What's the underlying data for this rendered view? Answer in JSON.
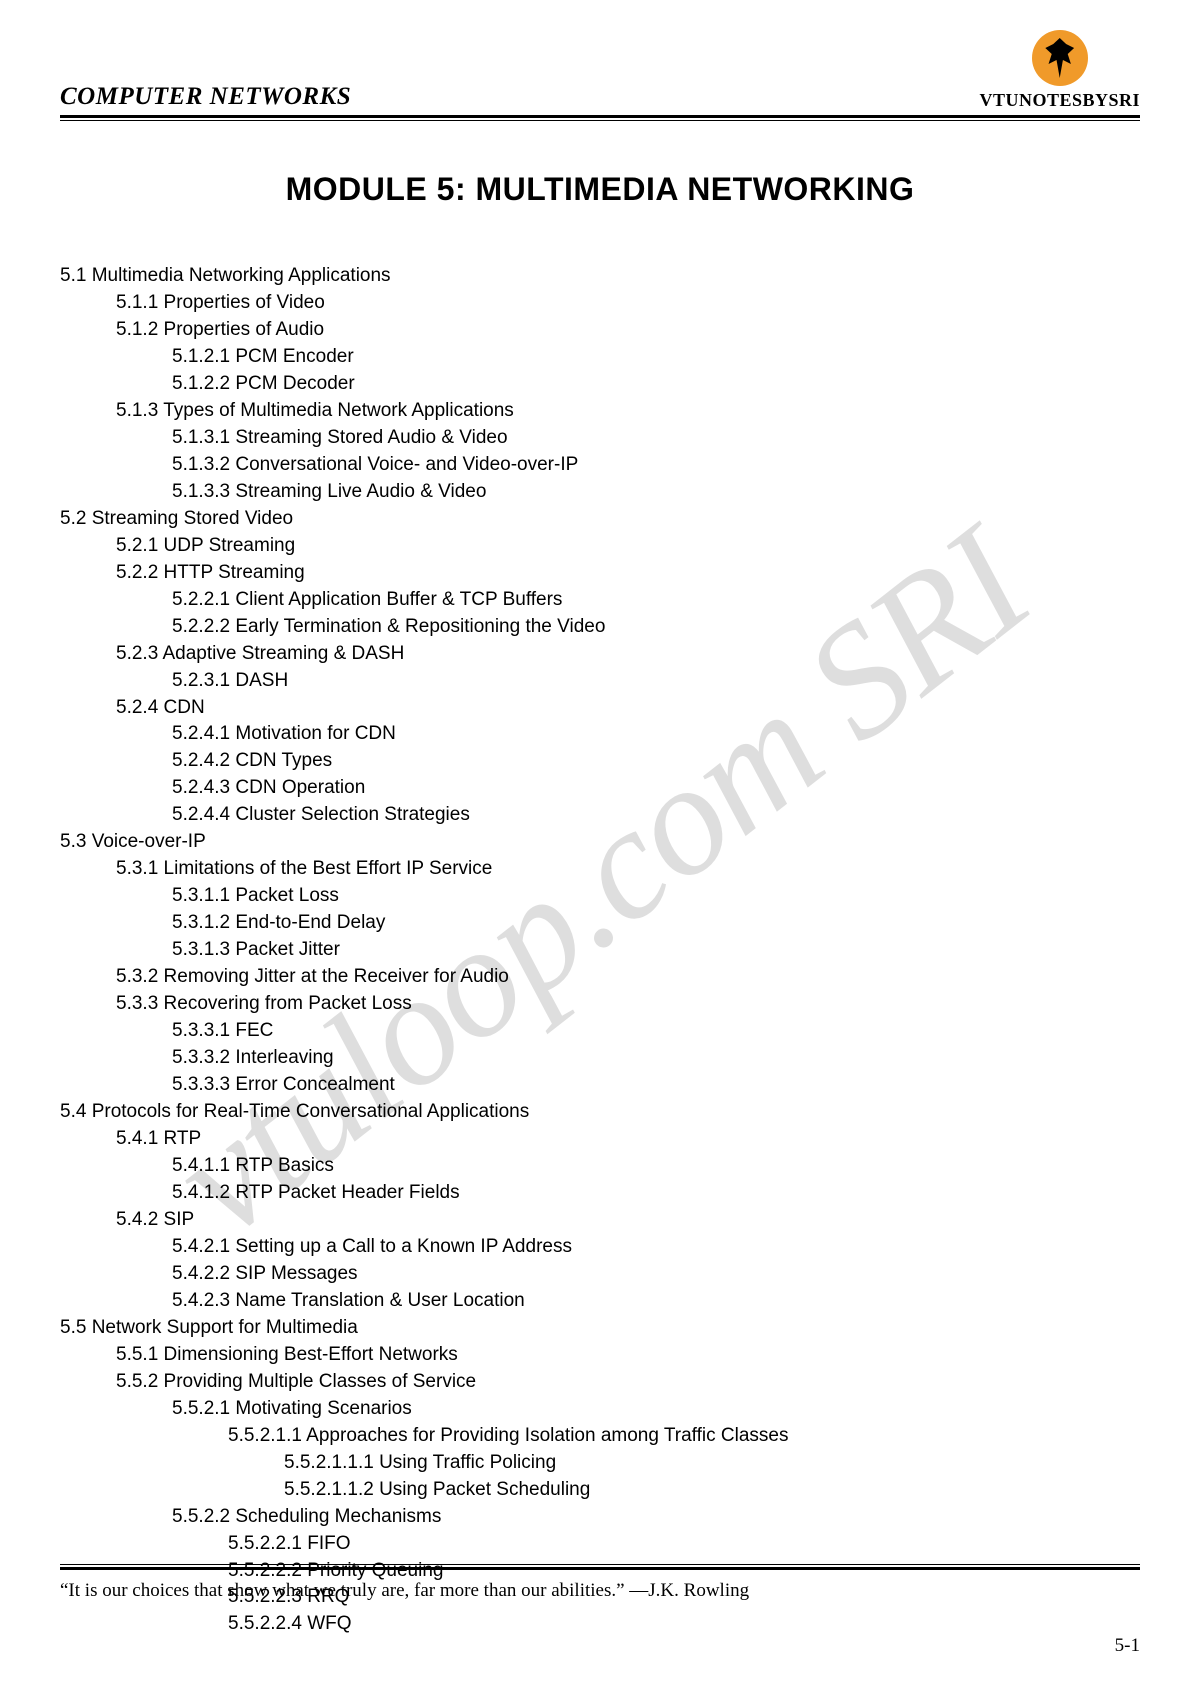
{
  "header": {
    "course_title": "COMPUTER NETWORKS",
    "brand_text": "VTUNOTESBYSRI",
    "logo_bg": "#f09a2a",
    "logo_fg": "#000000"
  },
  "module_title": "MODULE 5: MULTIMEDIA NETWORKING",
  "watermark": "vtuloop.com SRI",
  "toc": [
    {
      "level": 1,
      "text": "5.1 Multimedia Networking Applications"
    },
    {
      "level": 2,
      "text": "5.1.1 Properties of Video"
    },
    {
      "level": 2,
      "text": "5.1.2 Properties of Audio"
    },
    {
      "level": 3,
      "text": "5.1.2.1 PCM Encoder"
    },
    {
      "level": 3,
      "text": "5.1.2.2 PCM Decoder"
    },
    {
      "level": 2,
      "text": "5.1.3 Types of Multimedia Network Applications"
    },
    {
      "level": 3,
      "text": "5.1.3.1 Streaming Stored Audio & Video"
    },
    {
      "level": 3,
      "text": "5.1.3.2 Conversational Voice- and Video-over-IP"
    },
    {
      "level": 3,
      "text": "5.1.3.3 Streaming Live Audio & Video"
    },
    {
      "level": 1,
      "text": "5.2 Streaming Stored Video"
    },
    {
      "level": 2,
      "text": "5.2.1 UDP Streaming"
    },
    {
      "level": 2,
      "text": "5.2.2 HTTP Streaming"
    },
    {
      "level": 3,
      "text": "5.2.2.1 Client Application Buffer & TCP Buffers"
    },
    {
      "level": 3,
      "text": "5.2.2.2 Early Termination & Repositioning the Video"
    },
    {
      "level": 2,
      "text": "5.2.3 Adaptive Streaming & DASH"
    },
    {
      "level": 3,
      "text": "5.2.3.1 DASH"
    },
    {
      "level": 2,
      "text": "5.2.4 CDN"
    },
    {
      "level": 3,
      "text": "5.2.4.1 Motivation for CDN"
    },
    {
      "level": 3,
      "text": "5.2.4.2 CDN Types"
    },
    {
      "level": 3,
      "text": "5.2.4.3 CDN Operation"
    },
    {
      "level": 3,
      "text": "5.2.4.4 Cluster Selection Strategies"
    },
    {
      "level": 1,
      "text": "5.3 Voice-over-IP"
    },
    {
      "level": 2,
      "text": "5.3.1 Limitations of the Best Effort IP Service"
    },
    {
      "level": 3,
      "text": "5.3.1.1 Packet Loss"
    },
    {
      "level": 3,
      "text": "5.3.1.2 End-to-End Delay"
    },
    {
      "level": 3,
      "text": "5.3.1.3 Packet Jitter"
    },
    {
      "level": 2,
      "text": "5.3.2 Removing Jitter at the Receiver for Audio"
    },
    {
      "level": 2,
      "text": "5.3.3 Recovering from Packet Loss"
    },
    {
      "level": 3,
      "text": "5.3.3.1 FEC"
    },
    {
      "level": 3,
      "text": "5.3.3.2 Interleaving"
    },
    {
      "level": 3,
      "text": "5.3.3.3 Error Concealment"
    },
    {
      "level": 1,
      "text": "5.4 Protocols for Real-Time Conversational Applications"
    },
    {
      "level": 2,
      "text": "5.4.1 RTP"
    },
    {
      "level": 3,
      "text": "5.4.1.1 RTP Basics"
    },
    {
      "level": 3,
      "text": "5.4.1.2 RTP Packet Header Fields"
    },
    {
      "level": 2,
      "text": "5.4.2 SIP"
    },
    {
      "level": 3,
      "text": "5.4.2.1 Setting up a Call to a Known IP Address"
    },
    {
      "level": 3,
      "text": "5.4.2.2 SIP Messages"
    },
    {
      "level": 3,
      "text": "5.4.2.3 Name Translation & User Location"
    },
    {
      "level": 1,
      "text": "5.5 Network Support for Multimedia"
    },
    {
      "level": 2,
      "text": "5.5.1 Dimensioning Best-Effort Networks"
    },
    {
      "level": 2,
      "text": "5.5.2 Providing Multiple Classes of Service"
    },
    {
      "level": 3,
      "text": "5.5.2.1 Motivating Scenarios"
    },
    {
      "level": 4,
      "text": "5.5.2.1.1 Approaches for Providing Isolation among Traffic Classes"
    },
    {
      "level": 5,
      "text": "5.5.2.1.1.1 Using Traffic Policing"
    },
    {
      "level": 5,
      "text": "5.5.2.1.1.2 Using Packet Scheduling"
    },
    {
      "level": 3,
      "text": "5.5.2.2 Scheduling Mechanisms"
    },
    {
      "level": 4,
      "text": "5.5.2.2.1 FIFO"
    },
    {
      "level": 4,
      "text": "5.5.2.2.2 Priority Queuing"
    },
    {
      "level": 4,
      "text": "5.5.2.2.3 RRQ"
    },
    {
      "level": 4,
      "text": "5.5.2.2.4 WFQ"
    }
  ],
  "footer": {
    "quote": "“It is our choices that show what we truly are, far more than our abilities.”  —J.K. Rowling",
    "page_number": "5-1"
  },
  "colors": {
    "text": "#000000",
    "background": "#ffffff",
    "watermark": "rgba(0,0,0,0.13)"
  },
  "typography": {
    "body_font": "Verdana, Geneva, sans-serif",
    "serif_font": "Georgia, 'Times New Roman', serif",
    "module_title_size": 32,
    "toc_size": 19,
    "course_title_size": 25,
    "footer_size": 19
  }
}
